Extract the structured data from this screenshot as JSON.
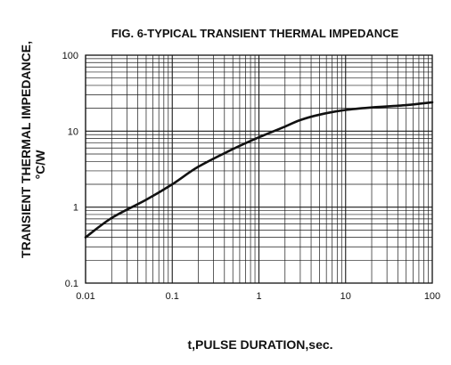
{
  "chart_data": {
    "type": "line",
    "title": "FIG. 6-TYPICAL TRANSIENT THERMAL IMPEDANCE",
    "xlabel": "t,PULSE DURATION,sec.",
    "ylabel_line1": "TRANSIENT THERMAL IMPEDANCE,",
    "ylabel_line2": "°C/W",
    "x_scale": "log",
    "y_scale": "log",
    "xlim": [
      0.01,
      100
    ],
    "ylim": [
      0.1,
      100
    ],
    "grid": true,
    "x_ticks": [
      0.01,
      0.1,
      1,
      10,
      100
    ],
    "x_tick_labels": [
      "0.01",
      "0.1",
      "1",
      "10",
      "100"
    ],
    "y_ticks": [
      0.1,
      1,
      10,
      100
    ],
    "y_tick_labels": [
      "0.1",
      "1",
      "10",
      "100"
    ],
    "series": [
      {
        "color": "#111111",
        "x": [
          0.01,
          0.02,
          0.05,
          0.1,
          0.2,
          0.5,
          1,
          2,
          3,
          5,
          10,
          20,
          50,
          100
        ],
        "y": [
          0.4,
          0.72,
          1.25,
          2.0,
          3.4,
          5.8,
          8.3,
          11.5,
          14.0,
          16.5,
          19.0,
          20.5,
          22.0,
          24.0
        ]
      }
    ]
  }
}
